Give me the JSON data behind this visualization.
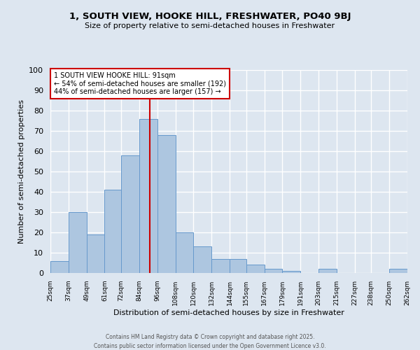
{
  "title1": "1, SOUTH VIEW, HOOKE HILL, FRESHWATER, PO40 9BJ",
  "title2": "Size of property relative to semi-detached houses in Freshwater",
  "xlabel": "Distribution of semi-detached houses by size in Freshwater",
  "ylabel": "Number of semi-detached properties",
  "bin_edges": [
    25,
    37,
    49,
    61,
    72,
    84,
    96,
    108,
    120,
    132,
    144,
    155,
    167,
    179,
    191,
    203,
    215,
    227,
    238,
    250,
    262
  ],
  "bin_labels": [
    "25sqm",
    "37sqm",
    "49sqm",
    "61sqm",
    "72sqm",
    "84sqm",
    "96sqm",
    "108sqm",
    "120sqm",
    "132sqm",
    "144sqm",
    "155sqm",
    "167sqm",
    "179sqm",
    "191sqm",
    "203sqm",
    "215sqm",
    "227sqm",
    "238sqm",
    "250sqm",
    "262sqm"
  ],
  "counts": [
    6,
    30,
    19,
    41,
    58,
    76,
    68,
    20,
    13,
    7,
    7,
    4,
    2,
    1,
    0,
    2,
    0,
    0,
    0,
    2
  ],
  "bar_facecolor": "#adc6e0",
  "bar_edgecolor": "#6699cc",
  "background_color": "#dde6f0",
  "grid_color": "#ffffff",
  "vline_x": 91,
  "vline_color": "#cc0000",
  "annotation_line1": "1 SOUTH VIEW HOOKE HILL: 91sqm",
  "annotation_line2": "← 54% of semi-detached houses are smaller (192)",
  "annotation_line3": "44% of semi-detached houses are larger (157) →",
  "annotation_box_edgecolor": "#cc0000",
  "annotation_box_facecolor": "#ffffff",
  "ylim": [
    0,
    100
  ],
  "yticks": [
    0,
    10,
    20,
    30,
    40,
    50,
    60,
    70,
    80,
    90,
    100
  ],
  "footer1": "Contains HM Land Registry data © Crown copyright and database right 2025.",
  "footer2": "Contains public sector information licensed under the Open Government Licence v3.0."
}
